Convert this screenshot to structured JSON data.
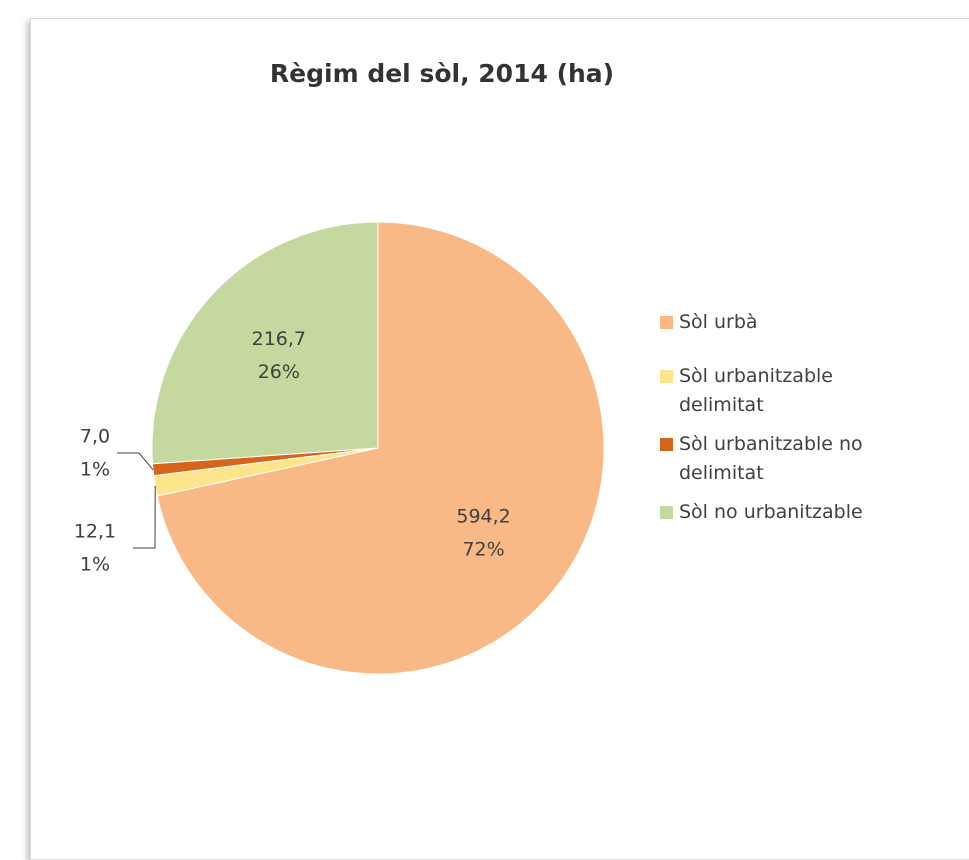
{
  "chart_data": {
    "type": "pie",
    "title": "Règim del sòl, 2014 (ha)",
    "categories": [
      "Sòl urbà",
      "Sòl urbanitzable delimitat",
      "Sòl urbanitzable no delimitat",
      "Sòl no urbanitzable"
    ],
    "values": [
      594.2,
      12.1,
      7.0,
      216.7
    ],
    "value_labels": [
      "594,2",
      "12,1",
      "7,0",
      "216,7"
    ],
    "percent_labels": [
      "72%",
      "1%",
      "1%",
      "26%"
    ],
    "colors": [
      "#f8b986",
      "#fde58c",
      "#d6641a",
      "#c5d89f"
    ],
    "legend": "right"
  }
}
